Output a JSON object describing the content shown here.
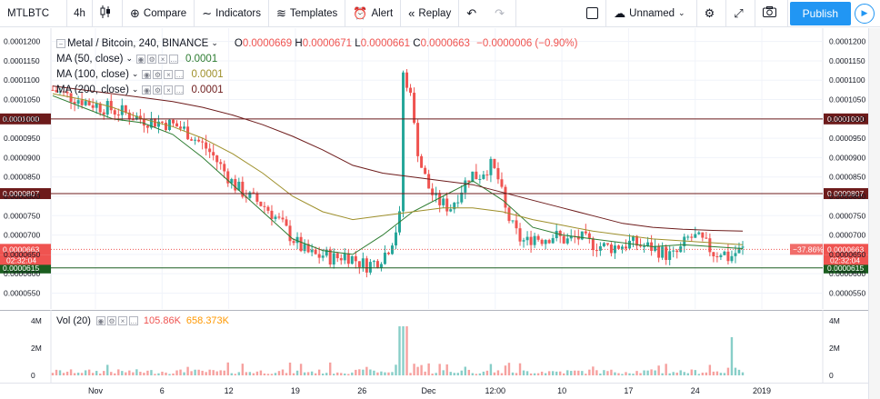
{
  "toolbar": {
    "symbol": "MTLBTC",
    "interval": "4h",
    "compare": "Compare",
    "indicators": "Indicators",
    "templates": "Templates",
    "alert": "Alert",
    "replay": "Replay",
    "layout_name": "Unnamed",
    "publish": "Publish"
  },
  "legend": {
    "title": "Metal / Bitcoin, 240, BINANCE",
    "o_label": "O",
    "o": "0.0000669",
    "h_label": "H",
    "h": "0.0000671",
    "l_label": "L",
    "l": "0.0000661",
    "c_label": "C",
    "c": "0.0000663",
    "change": "−0.0000006 (−0.90%)",
    "ma": [
      {
        "label": "MA (50, close)",
        "value": "0.0001",
        "color": "#2e7d32"
      },
      {
        "label": "MA (100, close)",
        "value": "0.0001",
        "color": "#9e8f2a"
      },
      {
        "label": "MA (200, close)",
        "value": "0.0001",
        "color": "#6d1b1b"
      }
    ]
  },
  "volume_legend": {
    "label": "Vol (20)",
    "v1": "105.86K",
    "v2": "658.373K"
  },
  "price_tags": {
    "last": "0.0000663",
    "countdown": "02:32:04",
    "pct": "−37.86%",
    "lines": [
      "0.0001000",
      "0.0000807",
      "0.0000615"
    ]
  },
  "colors": {
    "up": "#26a69a",
    "down": "#ef5350",
    "accent": "#2196f3",
    "line_top": "#6d1b1b",
    "line_mid": "#6d1b1b",
    "line_low": "#1b5e20"
  },
  "chart_data": {
    "type": "candlestick",
    "price_axis_ticks": [
      "0.0001200",
      "0.0001150",
      "0.0001100",
      "0.0001050",
      "0.0001000",
      "0.0000950",
      "0.0000900",
      "0.0000850",
      "0.0000800",
      "0.0000750",
      "0.0000700",
      "0.0000650",
      "0.0000600",
      "0.0000550"
    ],
    "volume_axis_ticks": [
      "4M",
      "2M",
      "0"
    ],
    "time_axis_ticks": [
      "Nov",
      "6",
      "12",
      "19",
      "26",
      "Dec",
      "12:00",
      "10",
      "17",
      "24",
      "2019"
    ],
    "ylim": [
      5.3e-05,
      0.0001225
    ],
    "horizontal_lines": [
      0.0001,
      8.07e-05,
      6.15e-05
    ],
    "close_path": [
      0.0001075,
      0.0001068,
      0.000106,
      0.0001055,
      0.000105,
      0.0001042,
      0.0001038,
      0.000103,
      0.0001028,
      0.000102,
      0.0001018,
      0.000101,
      0.0001005,
      9.98e-05,
      9.95e-05,
      9.92e-05,
      9.9e-05,
      9.85e-05,
      9.8e-05,
      9.7e-05,
      9.55e-05,
      9.4e-05,
      9.25e-05,
      9.05e-05,
      8.8e-05,
      8.55e-05,
      8.3e-05,
      8.15e-05,
      8e-05,
      7.9e-05,
      7.8e-05,
      7.65e-05,
      7.45e-05,
      7.25e-05,
      7e-05,
      6.8e-05,
      6.6e-05,
      6.5e-05,
      6.45e-05,
      6.5e-05,
      6.4e-05,
      6.42e-05,
      6.5e-05,
      6.4e-05,
      6.3e-05,
      6.22e-05,
      6.28e-05,
      6.4e-05,
      6.6e-05,
      7e-05,
      7.6e-05,
      0.000115,
      9.5e-05,
      8.7e-05,
      8.2e-05,
      7.9e-05,
      7.8e-05,
      7.7e-05,
      8e-05,
      8.3e-05,
      8.6e-05,
      8.5e-05,
      8.7e-05,
      8.8e-05,
      8.4e-05,
      7.6e-05,
      7.2e-05,
      6.9e-05,
      6.8e-05,
      7e-05,
      6.9e-05,
      6.95e-05,
      7e-05,
      6.9e-05,
      6.85e-05,
      6.95e-05,
      6.9e-05,
      6.8e-05,
      6.75e-05,
      6.7e-05,
      6.68e-05,
      6.72e-05,
      6.75e-05,
      6.8e-05,
      6.75e-05,
      6.7e-05,
      6.68e-05,
      6.6e-05,
      6.5e-05,
      6.45e-05,
      6.6e-05,
      6.9e-05,
      6.95e-05,
      6.85e-05,
      6.7e-05,
      6.5e-05,
      6.6e-05,
      6.4e-05,
      6.55e-05,
      6.63e-05
    ],
    "ma50_path": [
      0.000106,
      0.000103,
      0.0001,
      9.9e-05,
      9.6e-05,
      9e-05,
      8.3e-05,
      7.6e-05,
      6.9e-05,
      6.6e-05,
      6.5e-05,
      7e-05,
      7.6e-05,
      8e-05,
      8.4e-05,
      7.9e-05,
      7.2e-05,
      7e-05,
      6.9e-05,
      6.8e-05,
      6.7e-05,
      6.75e-05,
      6.7e-05,
      6.65e-05
    ],
    "ma100_path": [
      0.0001065,
      0.000105,
      0.000103,
      0.0001,
      9.8e-05,
      9.5e-05,
      9.1e-05,
      8.6e-05,
      8e-05,
      7.6e-05,
      7.4e-05,
      7.5e-05,
      7.6e-05,
      7.7e-05,
      7.7e-05,
      7.6e-05,
      7.4e-05,
      7.25e-05,
      7.1e-05,
      7e-05,
      6.9e-05,
      6.85e-05,
      6.8e-05,
      6.75e-05
    ],
    "ma200_path": [
      0.0001085,
      0.0001075,
      0.0001065,
      0.0001055,
      0.0001045,
      0.000103,
      0.000101,
      9.85e-05,
      9.55e-05,
      9.2e-05,
      8.8e-05,
      8.6e-05,
      8.5e-05,
      8.4e-05,
      8.3e-05,
      8.1e-05,
      7.9e-05,
      7.7e-05,
      7.5e-05,
      7.3e-05,
      7.2e-05,
      7.15e-05,
      7.12e-05,
      7.1e-05
    ]
  }
}
